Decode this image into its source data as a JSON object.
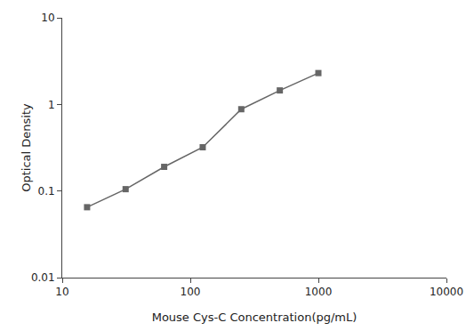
{
  "chart_data": {
    "type": "line",
    "x": [
      15.625,
      31.25,
      62.5,
      125,
      250,
      500,
      1000
    ],
    "values": [
      0.065,
      0.105,
      0.19,
      0.32,
      0.88,
      1.45,
      2.3
    ],
    "xlabel": "Mouse Cys-C Concentration(pg/mL)",
    "ylabel": "Optical Density",
    "xlim": [
      10,
      10000
    ],
    "ylim": [
      0.01,
      10
    ],
    "xticks": [
      10,
      100,
      1000,
      10000
    ],
    "yticks": [
      0.01,
      0.1,
      1,
      10
    ],
    "log": true,
    "grid": false,
    "color": "#666666",
    "marker": "square"
  }
}
